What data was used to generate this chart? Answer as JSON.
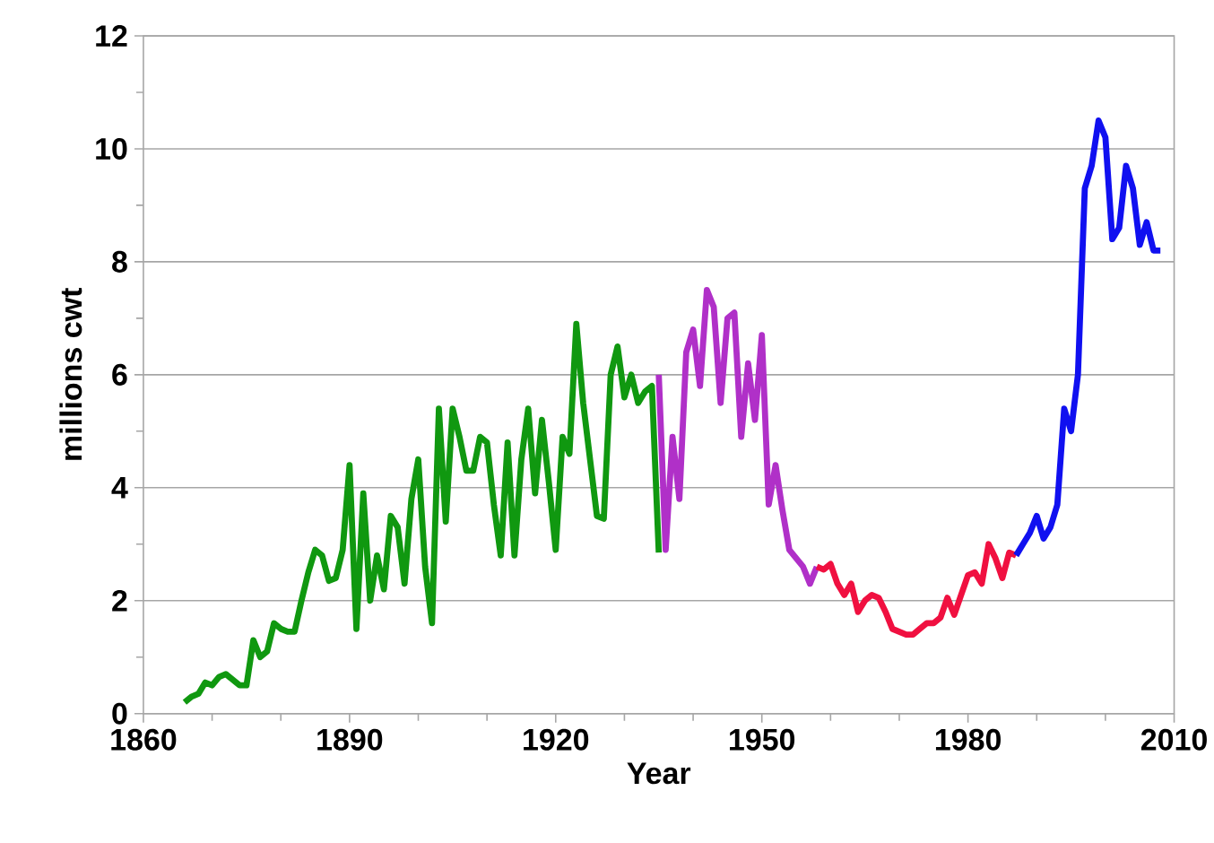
{
  "chart_data": {
    "type": "line",
    "xlabel": "Year",
    "ylabel": "millions cwt",
    "xlim": [
      1860,
      2010
    ],
    "xticks": [
      1860,
      1890,
      1920,
      1950,
      1980,
      2010
    ],
    "ylim": [
      0,
      12
    ],
    "yticks": [
      0,
      2,
      4,
      6,
      8,
      10,
      12
    ],
    "grid": "y",
    "marker": "none",
    "line_style": "solid",
    "series": [
      {
        "color": "#109810",
        "x": [
          1866,
          1867,
          1868,
          1869,
          1870,
          1871,
          1872,
          1873,
          1874,
          1875,
          1876,
          1877,
          1878,
          1879,
          1880,
          1881,
          1882,
          1883,
          1884,
          1885,
          1886,
          1887,
          1888,
          1889,
          1890,
          1891,
          1892,
          1893,
          1894,
          1895,
          1896,
          1897,
          1898,
          1899,
          1900,
          1901,
          1902,
          1903,
          1904,
          1905,
          1906,
          1907,
          1908,
          1909,
          1910,
          1911,
          1912,
          1913,
          1914,
          1915,
          1916,
          1917,
          1918,
          1919,
          1920,
          1921,
          1922,
          1923,
          1924,
          1925,
          1926,
          1927,
          1928,
          1929,
          1930,
          1931,
          1932,
          1933,
          1934,
          1935
        ],
        "values": [
          0.2,
          0.3,
          0.35,
          0.55,
          0.5,
          0.65,
          0.7,
          0.6,
          0.5,
          0.5,
          1.3,
          1.0,
          1.1,
          1.6,
          1.5,
          1.45,
          1.45,
          2.0,
          2.5,
          2.9,
          2.8,
          2.35,
          2.4,
          2.9,
          4.4,
          1.5,
          3.9,
          2.0,
          2.8,
          2.2,
          3.5,
          3.3,
          2.3,
          3.8,
          4.5,
          2.6,
          1.6,
          5.4,
          3.4,
          5.4,
          4.9,
          4.3,
          4.3,
          4.9,
          4.8,
          3.7,
          2.8,
          4.8,
          2.8,
          4.5,
          5.4,
          3.9,
          5.2,
          4.1,
          2.9,
          4.9,
          4.6,
          6.9,
          5.5,
          4.5,
          3.5,
          3.45,
          6.0,
          6.5,
          5.6,
          6.0,
          5.5,
          5.7,
          5.8,
          2.85
        ]
      },
      {
        "color": "#b030c8",
        "x": [
          1935,
          1936,
          1937,
          1938,
          1939,
          1940,
          1941,
          1942,
          1943,
          1944,
          1945,
          1946,
          1947,
          1948,
          1949,
          1950,
          1951,
          1952,
          1953,
          1954,
          1955,
          1956,
          1957,
          1958
        ],
        "values": [
          6.0,
          2.9,
          4.9,
          3.8,
          6.4,
          6.8,
          5.8,
          7.5,
          7.2,
          5.5,
          7.0,
          7.1,
          4.9,
          6.2,
          5.2,
          6.7,
          3.7,
          4.4,
          3.6,
          2.9,
          2.75,
          2.6,
          2.3,
          2.6
        ]
      },
      {
        "color": "#f01040",
        "x": [
          1958,
          1959,
          1960,
          1961,
          1962,
          1963,
          1964,
          1965,
          1966,
          1967,
          1968,
          1969,
          1970,
          1971,
          1972,
          1973,
          1974,
          1975,
          1976,
          1977,
          1978,
          1979,
          1980,
          1981,
          1982,
          1983,
          1984,
          1985,
          1986,
          1987
        ],
        "values": [
          2.6,
          2.55,
          2.65,
          2.3,
          2.1,
          2.3,
          1.8,
          2.0,
          2.1,
          2.05,
          1.8,
          1.5,
          1.45,
          1.4,
          1.4,
          1.5,
          1.6,
          1.6,
          1.7,
          2.05,
          1.75,
          2.1,
          2.45,
          2.5,
          2.3,
          3.0,
          2.75,
          2.4,
          2.85,
          2.8
        ]
      },
      {
        "color": "#1010f0",
        "x": [
          1987,
          1988,
          1989,
          1990,
          1991,
          1992,
          1993,
          1994,
          1995,
          1996,
          1997,
          1998,
          1999,
          2000,
          2001,
          2002,
          2003,
          2004,
          2005,
          2006,
          2007,
          2008
        ],
        "values": [
          2.8,
          3.0,
          3.2,
          3.5,
          3.1,
          3.3,
          3.7,
          5.4,
          5.0,
          6.0,
          9.3,
          9.7,
          10.5,
          10.2,
          8.4,
          8.6,
          9.7,
          9.3,
          8.3,
          8.7,
          8.2,
          8.2
        ]
      }
    ]
  }
}
